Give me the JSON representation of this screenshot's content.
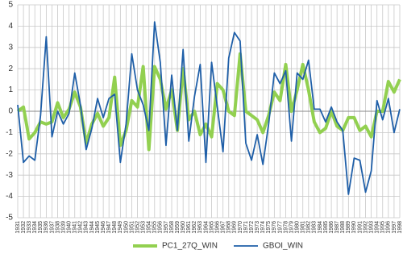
{
  "chart_data": {
    "type": "line",
    "x": [
      1931,
      1932,
      1933,
      1934,
      1935,
      1936,
      1937,
      1938,
      1939,
      1940,
      1941,
      1942,
      1943,
      1944,
      1945,
      1946,
      1947,
      1948,
      1949,
      1950,
      1951,
      1952,
      1953,
      1954,
      1955,
      1956,
      1957,
      1958,
      1959,
      1960,
      1961,
      1962,
      1963,
      1964,
      1965,
      1966,
      1967,
      1968,
      1969,
      1970,
      1971,
      1972,
      1973,
      1974,
      1975,
      1976,
      1977,
      1978,
      1979,
      1980,
      1981,
      1982,
      1983,
      1984,
      1985,
      1986,
      1987,
      1988,
      1989,
      1990,
      1991,
      1992,
      1993,
      1994,
      1995,
      1996,
      1997,
      1998
    ],
    "series": [
      {
        "name": "PC1_27Q_WIN",
        "color": "#92d050",
        "width": 4,
        "values": [
          0,
          0.2,
          -1.3,
          -1.0,
          -0.5,
          -0.6,
          -0.5,
          0.4,
          -0.3,
          0.1,
          0.9,
          0.2,
          -1.5,
          -0.6,
          -0.1,
          -0.7,
          -0.3,
          1.6,
          -1.6,
          -0.9,
          0.5,
          0.2,
          2.1,
          -1.8,
          2.1,
          1.5,
          0.1,
          1.0,
          -0.9,
          2.0,
          -0.4,
          0.0,
          -1.1,
          -0.6,
          -1.2,
          1.3,
          1.0,
          0.0,
          -0.2,
          2.7,
          0.0,
          -0.2,
          -0.4,
          -1.0,
          -0.2,
          0.9,
          0.5,
          2.2,
          0.0,
          1.0,
          2.2,
          1.0,
          -0.5,
          -1.0,
          -0.8,
          0.0,
          -0.7,
          -0.9,
          -0.3,
          -0.3,
          -0.9,
          -0.7,
          -1.2,
          0.0,
          0.0,
          1.4,
          0.9,
          1.5
        ]
      },
      {
        "name": "GBOI_WIN",
        "color": "#1f5fa8",
        "width": 1.8,
        "values": [
          0.3,
          -2.4,
          -2.1,
          -2.3,
          -0.2,
          3.5,
          -1.2,
          0.0,
          -0.6,
          -0.1,
          1.8,
          0.3,
          -1.8,
          -0.8,
          0.6,
          -0.3,
          0.6,
          0.8,
          -2.4,
          -0.6,
          2.7,
          1.0,
          0.3,
          -0.9,
          4.2,
          2.3,
          -1.6,
          1.7,
          -0.9,
          2.9,
          -1.4,
          0.7,
          2.2,
          -2.4,
          2.3,
          0.2,
          -1.9,
          2.5,
          3.7,
          3.3,
          -1.5,
          -2.3,
          -1.1,
          -2.5,
          -0.6,
          1.8,
          1.3,
          1.9,
          -1.4,
          1.8,
          1.5,
          2.4,
          0.1,
          0.1,
          -0.5,
          0.2,
          -0.5,
          -0.9,
          -3.9,
          -2.2,
          -2.3,
          -3.8,
          -2.8,
          0.5,
          -0.4,
          0.6,
          -1.0,
          0.1
        ]
      }
    ],
    "xlim": [
      1931,
      1998
    ],
    "ylim": [
      -5,
      5
    ],
    "yticks": [
      -5,
      -4,
      -3,
      -2,
      -1,
      0,
      1,
      2,
      3,
      4,
      5
    ],
    "grid": true
  }
}
